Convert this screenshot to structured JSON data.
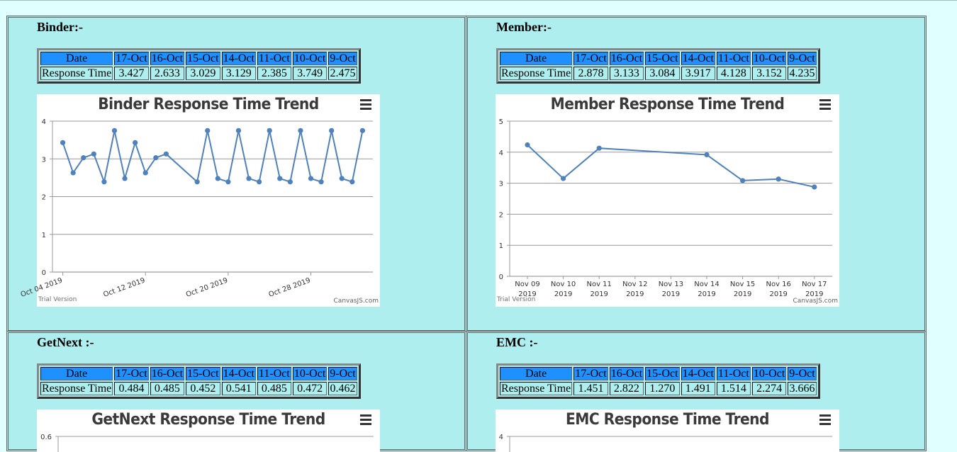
{
  "panels": [
    {
      "heading": "Binder:-",
      "table": {
        "header": [
          "Date",
          "17-Oct",
          "16-Oct",
          "15-Oct",
          "14-Oct",
          "11-Oct",
          "10-Oct",
          "9-Oct"
        ],
        "row": [
          "Response Time",
          "3.427",
          "2.633",
          "3.029",
          "3.129",
          "2.385",
          "3.749",
          "2.475"
        ]
      },
      "chart": {
        "title": "Binder Response Time Trend",
        "trial": "Trial Version",
        "credit": "CanvasJS.com",
        "menu_icon": "hamburger-menu-icon"
      }
    },
    {
      "heading": "Member:-",
      "table": {
        "header": [
          "Date",
          "17-Oct",
          "16-Oct",
          "15-Oct",
          "14-Oct",
          "11-Oct",
          "10-Oct",
          "9-Oct"
        ],
        "row": [
          "Response Time",
          "2.878",
          "3.133",
          "3.084",
          "3.917",
          "4.128",
          "3.152",
          "4.235"
        ]
      },
      "chart": {
        "title": "Member Response Time Trend",
        "trial": "Trial Version",
        "credit": "CanvasJS.com",
        "menu_icon": "hamburger-menu-icon"
      }
    },
    {
      "heading": "GetNext :-",
      "table": {
        "header": [
          "Date",
          "17-Oct",
          "16-Oct",
          "15-Oct",
          "14-Oct",
          "11-Oct",
          "10-Oct",
          "9-Oct"
        ],
        "row": [
          "Response Time",
          "0.484",
          "0.485",
          "0.452",
          "0.541",
          "0.485",
          "0.472",
          "0.462"
        ]
      },
      "chart": {
        "title": "GetNext Response Time Trend",
        "menu_icon": "hamburger-menu-icon"
      }
    },
    {
      "heading": "EMC :-",
      "table": {
        "header": [
          "Date",
          "17-Oct",
          "16-Oct",
          "15-Oct",
          "14-Oct",
          "11-Oct",
          "10-Oct",
          "9-Oct"
        ],
        "row": [
          "Response Time",
          "1.451",
          "2.822",
          "1.270",
          "1.491",
          "1.514",
          "2.274",
          "3.666"
        ]
      },
      "chart": {
        "title": "EMC Response Time Trend",
        "menu_icon": "hamburger-menu-icon"
      }
    }
  ],
  "colors": {
    "line": "#4f81bc",
    "header_cell": "#1e90ff",
    "panel": "#afeeee",
    "page": "#e0ffff"
  },
  "chart_data": [
    {
      "type": "line",
      "title": "Binder Response Time Trend",
      "xlabel": "",
      "ylabel": "",
      "ylim": [
        0,
        4
      ],
      "y_ticks": [
        "0",
        "1",
        "2",
        "3",
        "4"
      ],
      "xlim": [
        "2019-10-03",
        "2019-11-03"
      ],
      "x_ticks": [
        "Oct 04 2019",
        "Oct 12 2019",
        "Oct 20 2019",
        "Oct 28 2019"
      ],
      "grid": true,
      "x": [
        "2019-10-04",
        "2019-10-05",
        "2019-10-06",
        "2019-10-07",
        "2019-10-08",
        "2019-10-09",
        "2019-10-10",
        "2019-10-11",
        "2019-10-12",
        "2019-10-13",
        "2019-10-14",
        "2019-10-17",
        "2019-10-18",
        "2019-10-19",
        "2019-10-20",
        "2019-10-21",
        "2019-10-22",
        "2019-10-23",
        "2019-10-24",
        "2019-10-25",
        "2019-10-26",
        "2019-10-27",
        "2019-10-28",
        "2019-10-29",
        "2019-10-30",
        "2019-10-31",
        "2019-11-01",
        "2019-11-02"
      ],
      "values": [
        3.43,
        2.63,
        3.03,
        3.13,
        2.39,
        3.75,
        2.48,
        3.43,
        2.63,
        3.03,
        3.13,
        2.39,
        3.75,
        2.48,
        2.39,
        3.75,
        2.48,
        2.39,
        3.75,
        2.48,
        2.39,
        3.75,
        2.48,
        2.39,
        3.75,
        2.48,
        2.39,
        3.75
      ]
    },
    {
      "type": "line",
      "title": "Member Response Time Trend",
      "xlabel": "",
      "ylabel": "",
      "ylim": [
        0,
        5
      ],
      "y_ticks": [
        "0",
        "1",
        "2",
        "3",
        "4",
        "5"
      ],
      "x_ticks": [
        [
          "Nov 09",
          "2019"
        ],
        [
          "Nov 10",
          "2019"
        ],
        [
          "Nov 11",
          "2019"
        ],
        [
          "Nov 12",
          "2019"
        ],
        [
          "Nov 13",
          "2019"
        ],
        [
          "Nov 14",
          "2019"
        ],
        [
          "Nov 15",
          "2019"
        ],
        [
          "Nov 16",
          "2019"
        ],
        [
          "Nov 17",
          "2019"
        ]
      ],
      "grid": true,
      "x": [
        "Nov 09",
        "Nov 10",
        "Nov 11",
        "Nov 14",
        "Nov 15",
        "Nov 16",
        "Nov 17"
      ],
      "x_index": [
        0,
        1,
        2,
        5,
        6,
        7,
        8
      ],
      "values": [
        4.235,
        3.152,
        4.128,
        3.917,
        3.084,
        3.133,
        2.878
      ]
    },
    {
      "type": "line",
      "title": "GetNext Response Time Trend",
      "y_ticks": [
        "0.6"
      ]
    },
    {
      "type": "line",
      "title": "EMC Response Time Trend",
      "y_ticks": [
        "4"
      ]
    }
  ]
}
